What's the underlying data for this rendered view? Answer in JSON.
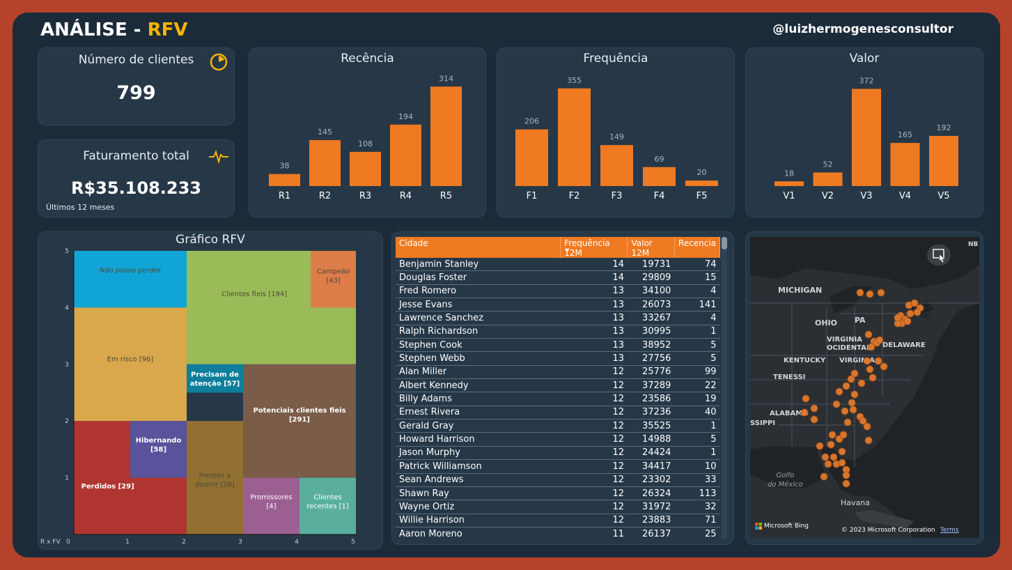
{
  "header": {
    "title_main": "ANÁLISE - ",
    "title_accent": "RFV",
    "handle": "@luizhermogenesconsultor"
  },
  "kpi_clients": {
    "title": "Número de clientes",
    "value": "799",
    "icon": "pie-chart-icon"
  },
  "kpi_revenue": {
    "title": "Faturamento total",
    "value": "R$35.108.233",
    "subtitle": "Últimos 12 meses",
    "icon": "pulse-icon"
  },
  "colors": {
    "accent": "#ef7a22",
    "card": "#263848",
    "frame": "#1c2b39",
    "gold": "#f5b400"
  },
  "chart_data": [
    {
      "type": "bar",
      "title": "Recência",
      "categories": [
        "R1",
        "R2",
        "R3",
        "R4",
        "R5"
      ],
      "values": [
        38,
        145,
        108,
        194,
        314
      ]
    },
    {
      "type": "bar",
      "title": "Frequência",
      "categories": [
        "F1",
        "F2",
        "F3",
        "F4",
        "F5"
      ],
      "values": [
        206,
        355,
        149,
        69,
        20
      ]
    },
    {
      "type": "bar",
      "title": "Valor",
      "categories": [
        "V1",
        "V2",
        "V3",
        "V4",
        "V5"
      ],
      "values": [
        18,
        52,
        372,
        165,
        192
      ]
    },
    {
      "type": "heatmap",
      "title": "Gráfico RFV",
      "axis_corner_label": "R x FV",
      "x_ticks": [
        "0",
        "1",
        "2",
        "3",
        "4",
        "5"
      ],
      "y_ticks": [
        "1",
        "2",
        "3",
        "4",
        "5"
      ],
      "segments": [
        {
          "name": "Não posso perder",
          "label": "Não posso perder",
          "color": "#10a5d6",
          "x": [
            0,
            2
          ],
          "y": [
            4,
            5
          ]
        },
        {
          "name": "Clientes fieis",
          "label": "Clientes fieis [194]",
          "color": "#9bbb59",
          "x": [
            2,
            5
          ],
          "y": [
            3,
            5
          ]
        },
        {
          "name": "Campeão",
          "label": "Campeão\n[43]",
          "color": "#dd7d48",
          "x": [
            4.2,
            5
          ],
          "y": [
            4,
            5
          ]
        },
        {
          "name": "Em risco",
          "label": "Em risco [96]",
          "color": "#d9a84d",
          "x": [
            0,
            2
          ],
          "y": [
            2,
            4
          ]
        },
        {
          "name": "Precisam de atenção",
          "label": "Precisam de\natenção [57]",
          "color": "#0e7e9a",
          "x": [
            2,
            3
          ],
          "y": [
            2.5,
            3
          ]
        },
        {
          "name": "Potenciais clientes fieis",
          "label": "Potenciais clientes fieis\n[291]",
          "color": "#7a5c48",
          "x": [
            3,
            5
          ],
          "y": [
            1,
            3
          ]
        },
        {
          "name": "Perdidos",
          "label": "Perdidos [29]",
          "color": "#b03530",
          "x": [
            0,
            2
          ],
          "y": [
            0,
            2
          ]
        },
        {
          "name": "Hibernando",
          "label": "Hibernando\n[58]",
          "color": "#58539a",
          "x": [
            1,
            2
          ],
          "y": [
            1,
            2
          ]
        },
        {
          "name": "Prestes a dormir",
          "label": "Prestes a\ndormir [26]",
          "color": "#917032",
          "x": [
            2,
            3
          ],
          "y": [
            0,
            2
          ]
        },
        {
          "name": "Promissores",
          "label": "Promissores\n[4]",
          "color": "#9c5f91",
          "x": [
            3,
            4
          ],
          "y": [
            0,
            1
          ]
        },
        {
          "name": "Clientes recentes",
          "label": "Clientes\nrecentes [1]",
          "color": "#5aaf9c",
          "x": [
            4,
            5
          ],
          "y": [
            0,
            1
          ]
        }
      ]
    }
  ],
  "table": {
    "columns": [
      "Cidade",
      "Frequência 12M",
      "Valor 12M",
      "Recencia"
    ],
    "rows": [
      [
        "Benjamin Stanley",
        "14",
        "19731",
        "74"
      ],
      [
        "Douglas Foster",
        "14",
        "29809",
        "15"
      ],
      [
        "Fred Romero",
        "13",
        "34100",
        "4"
      ],
      [
        "Jesse Evans",
        "13",
        "26073",
        "141"
      ],
      [
        "Lawrence Sanchez",
        "13",
        "33267",
        "4"
      ],
      [
        "Ralph Richardson",
        "13",
        "30995",
        "1"
      ],
      [
        "Stephen Cook",
        "13",
        "38952",
        "5"
      ],
      [
        "Stephen Webb",
        "13",
        "27756",
        "5"
      ],
      [
        "Alan Miller",
        "12",
        "25776",
        "99"
      ],
      [
        "Albert Kennedy",
        "12",
        "37289",
        "22"
      ],
      [
        "Billy Adams",
        "12",
        "23586",
        "19"
      ],
      [
        "Ernest Rivera",
        "12",
        "37236",
        "40"
      ],
      [
        "Gerald Gray",
        "12",
        "35525",
        "1"
      ],
      [
        "Howard Harrison",
        "12",
        "14988",
        "5"
      ],
      [
        "Jason Murphy",
        "12",
        "24424",
        "1"
      ],
      [
        "Patrick Williamson",
        "12",
        "34417",
        "10"
      ],
      [
        "Sean Andrews",
        "12",
        "23302",
        "33"
      ],
      [
        "Shawn Ray",
        "12",
        "26324",
        "113"
      ],
      [
        "Wayne Ortiz",
        "12",
        "31972",
        "32"
      ],
      [
        "Willie Harrison",
        "12",
        "23883",
        "71"
      ],
      [
        "Aaron Moreno",
        "11",
        "26137",
        "25"
      ]
    ]
  },
  "map": {
    "labels": [
      "MICHIGAN",
      "OHIO",
      "PA",
      "VIRGINIA\nOCIDENTAL",
      "DELAWARE",
      "KENTUCKY",
      "VIRGINIA",
      "TENESSI",
      "ALABAMA",
      "SSIPPI",
      "Golfo\ndo México",
      "Havana",
      "NB"
    ],
    "attribution_brand": "Microsoft Bing",
    "copyright": "© 2023 Microsoft Corporation",
    "terms": "Terms",
    "focus_icon": "focus-mode-icon"
  }
}
